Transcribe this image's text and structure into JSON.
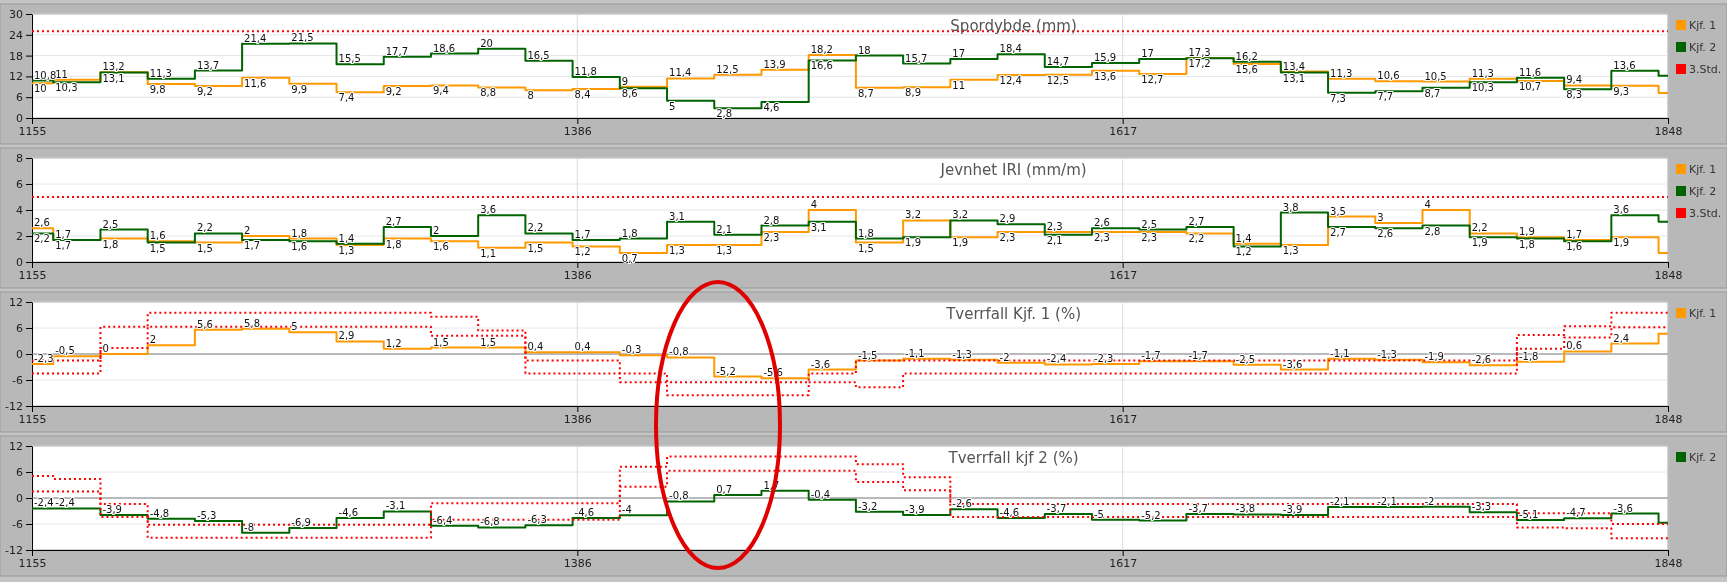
{
  "chart_data": [
    {
      "type": "step",
      "title": "Spordybde (mm)",
      "x": [
        1155,
        1164,
        1184,
        1204,
        1224,
        1244,
        1264,
        1284,
        1304,
        1324,
        1344,
        1364,
        1384,
        1404,
        1424,
        1444,
        1464,
        1484,
        1504,
        1524,
        1544,
        1564,
        1584,
        1604,
        1624,
        1644,
        1664,
        1684,
        1704,
        1724,
        1744,
        1764,
        1784,
        1804,
        1824,
        1844,
        1848
      ],
      "xlim": [
        1155,
        1848
      ],
      "xticks": [
        1155,
        1386,
        1617,
        1848
      ],
      "ylim": [
        0,
        30
      ],
      "yticks": [
        0,
        6,
        12,
        18,
        24,
        30
      ],
      "grid": true,
      "legend": "top right",
      "line_style": "solid",
      "series": [
        {
          "name": "Kjf. 1",
          "color": "#ff9900",
          "values": [
            10,
            11,
            13.2,
            9.8,
            9.2,
            11.6,
            9.9,
            7.4,
            9.2,
            9.4,
            8.8,
            8,
            8.4,
            9,
            11.4,
            12.5,
            13.9,
            18.2,
            8.7,
            8.9,
            11,
            12.4,
            12.5,
            13.6,
            12.7,
            17.3,
            15.6,
            13.4,
            11.3,
            10.6,
            10.5,
            11.3,
            10.7,
            9.4,
            9.3,
            7.2,
            7.2
          ],
          "value_labels": [
            "10",
            "11",
            "13,2",
            "9,8",
            "9,2",
            "11,6",
            "9,9",
            "7,4",
            "9,2",
            "9,4",
            "8,8",
            "8",
            "8,4",
            "9",
            "11,4",
            "12,5",
            "13,9",
            "18,2",
            "8,7",
            "8,9",
            "11",
            "12,4",
            "12,5",
            "13,6",
            "12,7",
            "17,3",
            "15,6",
            "13,4",
            "11,3",
            "10,6",
            "10,5",
            "11,3",
            "10,7",
            "9,4",
            "9,3",
            null,
            null
          ]
        },
        {
          "name": "Kjf. 2",
          "color": "#006400",
          "values": [
            10.8,
            10.3,
            13.1,
            11.3,
            13.7,
            21.4,
            21.5,
            15.5,
            17.7,
            18.6,
            20,
            16.5,
            11.8,
            8.6,
            5,
            2.8,
            4.6,
            16.6,
            18,
            15.7,
            17,
            18.4,
            14.7,
            15.9,
            17,
            17.2,
            16.2,
            13.1,
            7.3,
            7.7,
            8.7,
            10.3,
            11.6,
            8.3,
            13.6,
            12.2,
            12.2
          ],
          "value_labels": [
            "10,8",
            "10,3",
            "13,1",
            "11,3",
            "13,7",
            "21,4",
            "21,5",
            "15,5",
            "17,7",
            "18,6",
            "20",
            "16,5",
            "11,8",
            "8,6",
            "5",
            "2,8",
            "4,6",
            "16,6",
            "18",
            "15,7",
            "17",
            "18,4",
            "14,7",
            "15,9",
            "17",
            "17,2",
            "16,2",
            "13,1",
            "7,3",
            "7,7",
            "8,7",
            "10,3",
            "11,6",
            "8,3",
            "13,6",
            null,
            null
          ]
        },
        {
          "name": "3.Std.",
          "color": "#ff0000",
          "line_style": "dotted",
          "values": [
            25,
            25,
            25,
            25,
            25,
            25,
            25,
            25,
            25,
            25,
            25,
            25,
            25,
            25,
            25,
            25,
            25,
            25,
            25,
            25,
            25,
            25,
            25,
            25,
            25,
            25,
            25,
            25,
            25,
            25,
            25,
            25,
            25,
            25,
            25,
            25,
            25
          ]
        }
      ]
    },
    {
      "type": "step",
      "title": "Jevnhet IRI (mm/m)",
      "x": [
        1155,
        1164,
        1184,
        1204,
        1224,
        1244,
        1264,
        1284,
        1304,
        1324,
        1344,
        1364,
        1384,
        1404,
        1424,
        1444,
        1464,
        1484,
        1504,
        1524,
        1544,
        1564,
        1584,
        1604,
        1624,
        1644,
        1664,
        1684,
        1704,
        1724,
        1744,
        1764,
        1784,
        1804,
        1824,
        1844,
        1848
      ],
      "xlim": [
        1155,
        1848
      ],
      "xticks": [
        1155,
        1386,
        1617,
        1848
      ],
      "ylim": [
        0,
        8
      ],
      "yticks": [
        0,
        2,
        4,
        6,
        8
      ],
      "grid": true,
      "legend": "top right",
      "line_style": "solid",
      "series": [
        {
          "name": "Kjf. 1",
          "color": "#ff9900",
          "values": [
            2.6,
            1.7,
            1.8,
            1.6,
            1.5,
            2,
            1.8,
            1.3,
            1.8,
            1.6,
            1.1,
            1.5,
            1.2,
            0.7,
            1.3,
            1.3,
            2.3,
            4,
            1.5,
            3.2,
            1.9,
            2.3,
            2.3,
            2.3,
            2.3,
            2.2,
            1.4,
            1.3,
            3.5,
            3,
            4,
            2.2,
            1.9,
            1.7,
            1.9,
            0.7,
            0.7
          ],
          "value_labels": [
            "2,6",
            "1,7",
            "1,8",
            "1,6",
            "1,5",
            "2",
            "1,8",
            "1,3",
            "1,8",
            "1,6",
            "1,1",
            "1,5",
            "1,2",
            "0,7",
            "1,3",
            "1,3",
            "2,3",
            "4",
            "1,5",
            "3,2",
            "1,9",
            "2,3",
            "2,3",
            "2,3",
            "2,3",
            "2,2",
            "1,4",
            "1,3",
            "3,5",
            "3",
            "4",
            "2,2",
            "1,9",
            "1,7",
            "1,9",
            null,
            null
          ]
        },
        {
          "name": "Kjf. 2",
          "color": "#006400",
          "values": [
            2.2,
            1.7,
            2.5,
            1.5,
            2.2,
            1.7,
            1.6,
            1.4,
            2.7,
            2,
            3.6,
            2.2,
            1.7,
            1.8,
            3.1,
            2.1,
            2.8,
            3.1,
            1.8,
            1.9,
            3.2,
            2.9,
            2.1,
            2.6,
            2.5,
            2.7,
            1.2,
            3.8,
            2.7,
            2.6,
            2.8,
            1.9,
            1.8,
            1.6,
            3.6,
            3.1,
            3.1
          ],
          "value_labels": [
            "2,2",
            "1,7",
            "2,5",
            "1,5",
            "2,2",
            "1,7",
            "1,6",
            "1,4",
            "2,7",
            "2",
            "3,6",
            "2,2",
            "1,7",
            "1,8",
            "3,1",
            "2,1",
            "2,8",
            "3,1",
            "1,8",
            "1,9",
            "3,2",
            "2,9",
            "2,1",
            "2,6",
            "2,5",
            "2,7",
            "1,2",
            "3,8",
            "2,7",
            "2,6",
            "2,8",
            "1,9",
            "1,8",
            "1,6",
            "3,6",
            null,
            null
          ]
        },
        {
          "name": "3.Std.",
          "color": "#ff0000",
          "line_style": "dotted",
          "values": [
            5,
            5,
            5,
            5,
            5,
            5,
            5,
            5,
            5,
            5,
            5,
            5,
            5,
            5,
            5,
            5,
            5,
            5,
            5,
            5,
            5,
            5,
            5,
            5,
            5,
            5,
            5,
            5,
            5,
            5,
            5,
            5,
            5,
            5,
            5,
            5,
            5
          ]
        }
      ]
    },
    {
      "type": "step",
      "title": "Tverrfall Kjf. 1 (%)",
      "x": [
        1155,
        1164,
        1184,
        1204,
        1224,
        1244,
        1264,
        1284,
        1304,
        1324,
        1344,
        1364,
        1384,
        1404,
        1424,
        1444,
        1464,
        1484,
        1504,
        1524,
        1544,
        1564,
        1584,
        1604,
        1624,
        1644,
        1664,
        1684,
        1704,
        1724,
        1744,
        1764,
        1784,
        1804,
        1824,
        1844,
        1848
      ],
      "xlim": [
        1155,
        1848
      ],
      "xticks": [
        1155,
        1386,
        1617,
        1848
      ],
      "ylim": [
        -12,
        12
      ],
      "yticks": [
        -12,
        -6,
        0,
        6,
        12
      ],
      "grid": true,
      "legend": "top right",
      "line_style": "solid",
      "ref_lines": [
        {
          "axis": "y",
          "value": 0,
          "color": "#808080"
        }
      ],
      "series": [
        {
          "name": "Kjf. 1",
          "color": "#ff9900",
          "values": [
            -2.3,
            -0.5,
            0,
            2,
            5.6,
            5.8,
            5,
            2.9,
            1.2,
            1.5,
            1.5,
            0.4,
            0.4,
            -0.3,
            -0.8,
            -5.2,
            -5.6,
            -3.6,
            -1.5,
            -1.1,
            -1.3,
            -2,
            -2.4,
            -2.3,
            -1.7,
            -1.7,
            -2.5,
            -3.6,
            -1.1,
            -1.3,
            -1.9,
            -2.6,
            -1.8,
            0.6,
            2.4,
            4.7,
            4.7
          ],
          "value_labels": [
            "-2,3",
            "-0,5",
            "0",
            "2",
            "5,6",
            "5,8",
            "5",
            "2,9",
            "1,2",
            "1,5",
            "1,5",
            "0,4",
            "0,4",
            "-0,3",
            "-0,8",
            "-5,2",
            "-5,6",
            "-3,6",
            "-1,5",
            "-1,1",
            "-1,3",
            "-2",
            "-2,4",
            "-2,3",
            "-1,7",
            "-1,7",
            "-2,5",
            "-3,6",
            "-1,1",
            "-1,3",
            "-1,9",
            "-2,6",
            "-1,8",
            "0,6",
            "2,4",
            null,
            null
          ]
        },
        {
          "color": "#ff0000",
          "line_style": "dotted",
          "values": [
            -1.5,
            -1.5,
            6.3,
            9.5,
            9.5,
            9.5,
            9.5,
            9.5,
            9.5,
            8.6,
            5.4,
            -1.5,
            -1.5,
            -4.5,
            -6.5,
            -6.5,
            -6.5,
            -4.5,
            -1.5,
            -1.5,
            -1.5,
            -1.5,
            -1.5,
            -1.5,
            -1.5,
            -1.5,
            -1.5,
            -1.5,
            -1.5,
            -1.5,
            -1.5,
            -1.5,
            4.4,
            6.4,
            9.5,
            9.5,
            9.5
          ]
        },
        {
          "color": "#ff0000",
          "line_style": "dotted",
          "values": [
            -4.5,
            -4.5,
            1.4,
            6.3,
            6.3,
            6.3,
            6.3,
            6.3,
            6.3,
            4.2,
            4.2,
            -4.5,
            -4.5,
            -6.5,
            -9.5,
            -9.5,
            -9.5,
            -6.5,
            -7.7,
            -4.5,
            -4.5,
            -4.5,
            -4.5,
            -4.5,
            -4.5,
            -4.5,
            -4.5,
            -4.5,
            -4.5,
            -4.5,
            -4.5,
            -4.5,
            1.2,
            3.8,
            6.2,
            6.2,
            6.2
          ]
        }
      ]
    },
    {
      "type": "step",
      "title": "Tverrfall kjf 2 (%)",
      "x": [
        1155,
        1164,
        1184,
        1204,
        1224,
        1244,
        1264,
        1284,
        1304,
        1324,
        1344,
        1364,
        1384,
        1404,
        1424,
        1444,
        1464,
        1484,
        1504,
        1524,
        1544,
        1564,
        1584,
        1604,
        1624,
        1644,
        1664,
        1684,
        1704,
        1724,
        1744,
        1764,
        1784,
        1804,
        1824,
        1844,
        1848
      ],
      "xlim": [
        1155,
        1848
      ],
      "xticks": [
        1155,
        1386,
        1617,
        1848
      ],
      "ylim": [
        -12,
        12
      ],
      "yticks": [
        -12,
        -6,
        0,
        6,
        12
      ],
      "grid": true,
      "legend": "top right",
      "line_style": "solid",
      "ref_lines": [
        {
          "axis": "y",
          "value": 0,
          "color": "#808080"
        }
      ],
      "series": [
        {
          "name": "Kjf. 2",
          "color": "#006400",
          "values": [
            -2.4,
            -2.4,
            -3.9,
            -4.8,
            -5.3,
            -8,
            -6.9,
            -4.6,
            -3.1,
            -6.4,
            -6.8,
            -6.3,
            -4.6,
            -4,
            -0.8,
            0.7,
            1.7,
            -0.4,
            -3.2,
            -3.9,
            -2.6,
            -4.6,
            -3.7,
            -5,
            -5.2,
            -3.7,
            -3.8,
            -3.9,
            -2.1,
            -2.1,
            -2,
            -3.3,
            -5.1,
            -4.7,
            -3.6,
            -5.7,
            -5.7
          ],
          "value_labels": [
            "-2,4",
            "-2,4",
            "-3,9",
            "-4,8",
            "-5,3",
            "-8",
            "-6,9",
            "-4,6",
            "-3,1",
            "-6,4",
            "-6,8",
            "-6,3",
            "-4,6",
            "-4",
            "-0,8",
            "0,7",
            "1,7",
            "-0,4",
            "-3,2",
            "-3,9",
            "-2,6",
            "-4,6",
            "-3,7",
            "-5",
            "-5,2",
            "-3,7",
            "-3,8",
            "-3,9",
            "-2,1",
            "-2,1",
            "-2",
            "-3,3",
            "-5,1",
            "-4,7",
            "-3,6",
            null,
            null
          ]
        },
        {
          "color": "#ff0000",
          "line_style": "dotted",
          "values": [
            5.1,
            4.4,
            -1.4,
            -6.2,
            -6.2,
            -6.2,
            -6.2,
            -6.2,
            -6.2,
            -1.2,
            -1.2,
            -1.2,
            -1.2,
            7.2,
            9.6,
            9.6,
            9.6,
            9.6,
            7.8,
            4.8,
            -1.4,
            -1.4,
            -1.4,
            -1.4,
            -1.4,
            -1.4,
            -1.4,
            -1.4,
            -1.4,
            -1.4,
            -1.4,
            -1.4,
            -3.5,
            -3.5,
            -6,
            -6,
            -6
          ]
        },
        {
          "color": "#ff0000",
          "line_style": "dotted",
          "values": [
            1.5,
            1.5,
            -4.4,
            -9.2,
            -9.2,
            -9.2,
            -9.2,
            -9.2,
            -9.2,
            -5,
            -5,
            -5,
            -5,
            2.6,
            6.3,
            6.3,
            6.3,
            6.3,
            3.7,
            1.8,
            -4.4,
            -4.4,
            -4.4,
            -4.4,
            -4.4,
            -4.4,
            -4.4,
            -4.4,
            -4.4,
            -4.4,
            -4.4,
            -4.4,
            -6.8,
            -7,
            -9.3,
            -9.3,
            -9.3
          ]
        }
      ]
    }
  ]
}
